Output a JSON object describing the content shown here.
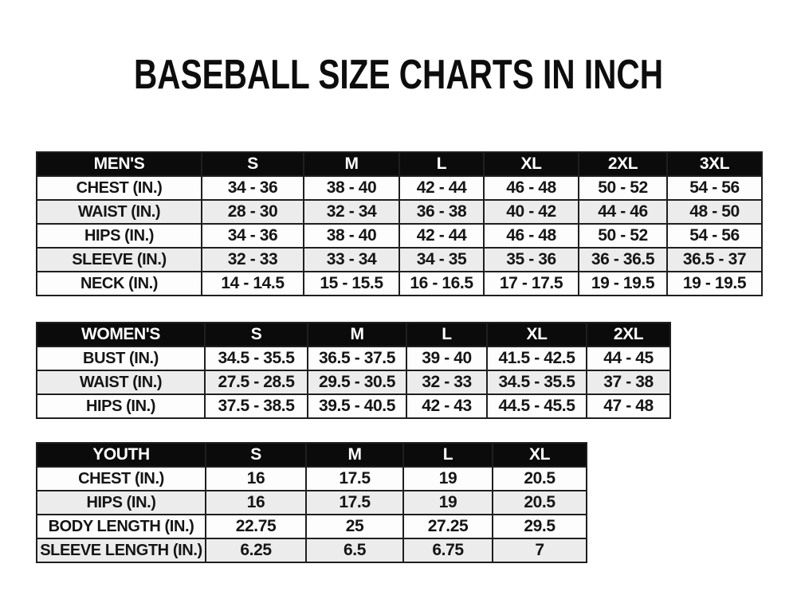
{
  "page": {
    "title": "BASEBALL SIZE CHARTS IN INCH"
  },
  "colors": {
    "header_bg": "#0b0b0b",
    "header_text": "#ffffff",
    "row_bg": "#fdfdfd",
    "row_alt_bg": "#ececec",
    "border": "#1f1f1f",
    "text": "#151515",
    "page_bg": "#ffffff"
  },
  "chart_data": {
    "type": "table",
    "title": "BASEBALL SIZE CHARTS IN INCH"
  },
  "tables": [
    {
      "name": "mens",
      "header": [
        "MEN'S",
        "S",
        "M",
        "L",
        "XL",
        "2XL",
        "3XL"
      ],
      "rows": [
        {
          "label": "CHEST (IN.)",
          "values": [
            "34 - 36",
            "38 - 40",
            "42 - 44",
            "46 - 48",
            "50 - 52",
            "54 - 56"
          ]
        },
        {
          "label": "WAIST (IN.)",
          "values": [
            "28 - 30",
            "32 - 34",
            "36 - 38",
            "40 - 42",
            "44 - 46",
            "48 - 50"
          ]
        },
        {
          "label": "HIPS (IN.)",
          "values": [
            "34 - 36",
            "38 - 40",
            "42 - 44",
            "46 - 48",
            "50 - 52",
            "54 - 56"
          ]
        },
        {
          "label": "SLEEVE (IN.)",
          "values": [
            "32 - 33",
            "33 - 34",
            "34 - 35",
            "35 - 36",
            "36 - 36.5",
            "36.5 - 37"
          ]
        },
        {
          "label": "NECK (IN.)",
          "values": [
            "14 - 14.5",
            "15 - 15.5",
            "16 - 16.5",
            "17 - 17.5",
            "19 - 19.5",
            "19 - 19.5"
          ]
        }
      ]
    },
    {
      "name": "womens",
      "header": [
        "WOMEN'S",
        "S",
        "M",
        "L",
        "XL",
        "2XL"
      ],
      "rows": [
        {
          "label": "BUST (IN.)",
          "values": [
            "34.5 - 35.5",
            "36.5 - 37.5",
            "39 - 40",
            "41.5 - 42.5",
            "44 - 45"
          ]
        },
        {
          "label": "WAIST (IN.)",
          "values": [
            "27.5 - 28.5",
            "29.5 - 30.5",
            "32 - 33",
            "34.5 - 35.5",
            "37 - 38"
          ]
        },
        {
          "label": "HIPS (IN.)",
          "values": [
            "37.5 - 38.5",
            "39.5 - 40.5",
            "42 - 43",
            "44.5 - 45.5",
            "47 - 48"
          ]
        }
      ]
    },
    {
      "name": "youth",
      "header": [
        "YOUTH",
        "S",
        "M",
        "L",
        "XL"
      ],
      "rows": [
        {
          "label": "CHEST (IN.)",
          "values": [
            "16",
            "17.5",
            "19",
            "20.5"
          ]
        },
        {
          "label": "HIPS (IN.)",
          "values": [
            "16",
            "17.5",
            "19",
            "20.5"
          ]
        },
        {
          "label": "BODY LENGTH (IN.)",
          "values": [
            "22.75",
            "25",
            "27.25",
            "29.5"
          ]
        },
        {
          "label": "SLEEVE LENGTH (IN.)",
          "values": [
            "6.25",
            "6.5",
            "6.75",
            "7"
          ]
        }
      ]
    }
  ]
}
